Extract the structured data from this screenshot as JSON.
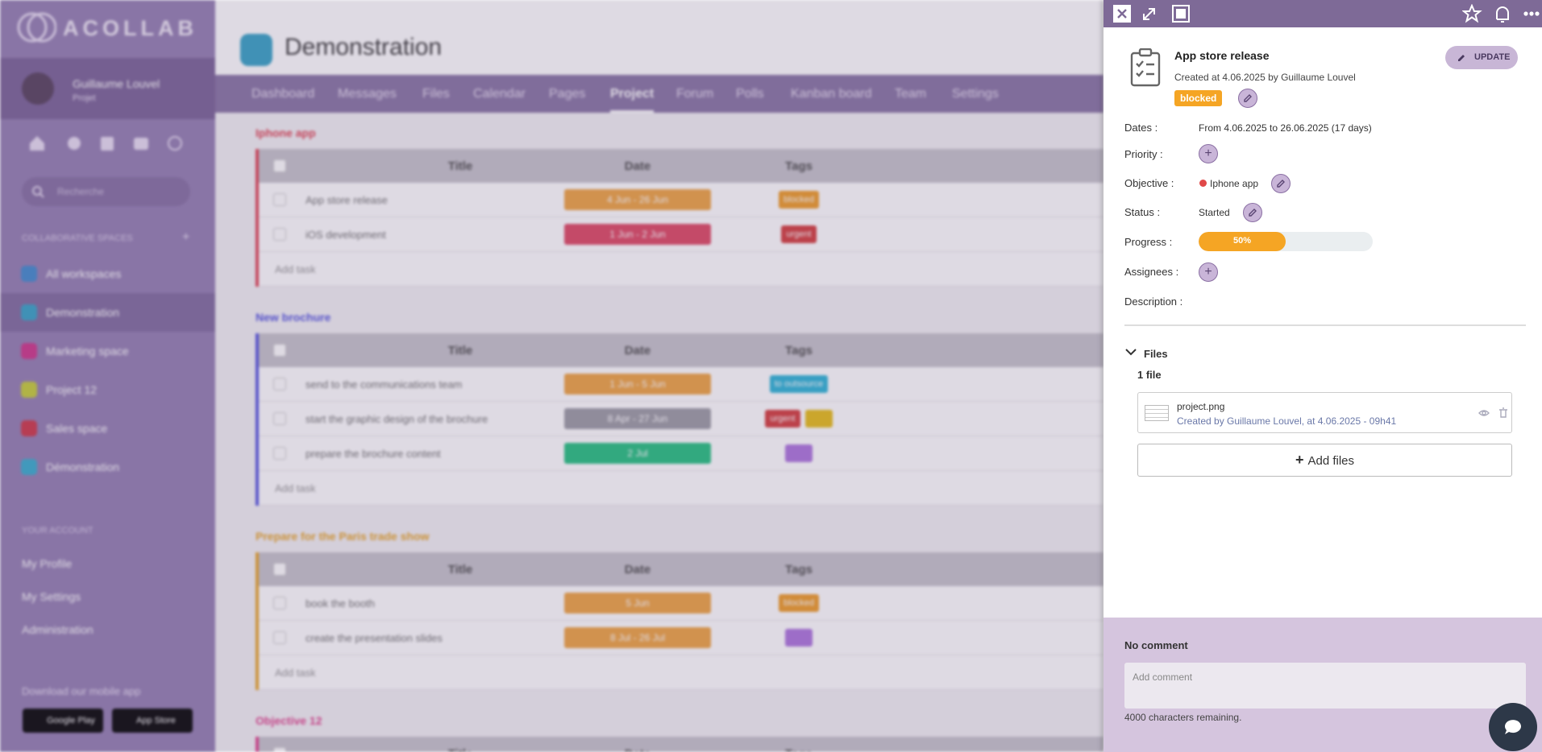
{
  "sidebar": {
    "logo": "ACOLLAB",
    "user": {
      "name": "Guillaume Louvel",
      "role": "Projet"
    },
    "search_placeholder": "Recherche",
    "spaces_heading": "COLLABORATIVE SPACES",
    "spaces": [
      {
        "name": "All workspaces",
        "color": "#4a8fd0"
      },
      {
        "name": "Demonstration",
        "color": "#3fa7c9"
      },
      {
        "name": "Marketing space",
        "color": "#d03f8f"
      },
      {
        "name": "Project 12",
        "color": "#c9d040"
      },
      {
        "name": "Sales space",
        "color": "#d04050"
      },
      {
        "name": "Démonstration",
        "color": "#40b0d0"
      }
    ],
    "active_space": 1,
    "account_heading": "YOUR ACCOUNT",
    "account_links": [
      "My Profile",
      "My Settings",
      "Administration"
    ],
    "download": "Download our mobile app",
    "stores": [
      "Google Play",
      "App Store"
    ]
  },
  "main": {
    "title": "Demonstration",
    "tabs": [
      "Dashboard",
      "Messages",
      "Files",
      "Calendar",
      "Pages",
      "Project",
      "Forum",
      "Polls",
      "Kanban board",
      "Team",
      "Settings"
    ],
    "active_tab": 5,
    "columns": [
      "Title",
      "Date",
      "Tags"
    ],
    "add_task": "Add task",
    "groups": [
      {
        "name": "Iphone app",
        "color": "#e04858",
        "tasks": [
          {
            "title": "App store release",
            "date": "4 Jun - 26 Jun",
            "date_color": "#f0a84a",
            "tags": [
              {
                "label": "blocked",
                "color": "#f0a030"
              }
            ]
          },
          {
            "title": "iOS development",
            "date": "1 Jun - 2 Jun",
            "date_color": "#e0506a",
            "tags": [
              {
                "label": "urgent",
                "color": "#d64545"
              }
            ]
          }
        ]
      },
      {
        "name": "New brochure",
        "color": "#5a5ae0",
        "tasks": [
          {
            "title": "send to the communications team",
            "date": "1 Jun - 5 Jun",
            "date_color": "#f0a84a",
            "tags": [
              {
                "label": "to outsource",
                "color": "#35b8d8"
              }
            ]
          },
          {
            "title": "start the graphic design of the brochure",
            "date": "8 Apr - 27 Jun",
            "date_color": "#a0a0a8",
            "tags": [
              {
                "label": "urgent",
                "color": "#d64545"
              },
              {
                "color": "#e8c020"
              }
            ]
          },
          {
            "title": "prepare the brochure content",
            "date": "2 Jul",
            "date_color": "#2ec486",
            "tags": [
              {
                "color": "#b07adf"
              }
            ]
          }
        ]
      },
      {
        "name": "Prepare for the Paris trade show",
        "color": "#e8a830",
        "tasks": [
          {
            "title": "book the booth",
            "date": "5 Jun",
            "date_color": "#f0a84a",
            "tags": [
              {
                "label": "blocked",
                "color": "#f0a030"
              }
            ]
          },
          {
            "title": "create the presentation slides",
            "date": "8 Jul - 26 Jul",
            "date_color": "#f0a84a",
            "tags": [
              {
                "color": "#b07adf"
              }
            ]
          }
        ]
      },
      {
        "name": "Objective 12",
        "color": "#e04890",
        "tasks": []
      }
    ]
  },
  "panel": {
    "title": "App store release",
    "created": "Created at 4.06.2025 by Guillaume Louvel",
    "tag": "blocked",
    "update": "UPDATE",
    "fields": {
      "dates": {
        "label": "Dates :",
        "value": "From 4.06.2025 to 26.06.2025 (17 days)"
      },
      "priority": {
        "label": "Priority :"
      },
      "objective": {
        "label": "Objective :",
        "value": "Iphone app"
      },
      "status": {
        "label": "Status :",
        "value": "Started"
      },
      "progress": {
        "label": "Progress :",
        "value": 50,
        "value_label": "50%",
        "max": 100
      },
      "assignees": {
        "label": "Assignees :"
      },
      "description": {
        "label": "Description :"
      }
    },
    "files": {
      "heading": "Files",
      "count": "1 file",
      "items": [
        {
          "name": "project.png",
          "meta": "Created by Guillaume Louvel, at 4.06.2025 - 09h41"
        }
      ],
      "add": "Add files"
    },
    "comments": {
      "heading": "No comment",
      "placeholder": "Add comment",
      "remaining": "4000 characters remaining."
    }
  }
}
